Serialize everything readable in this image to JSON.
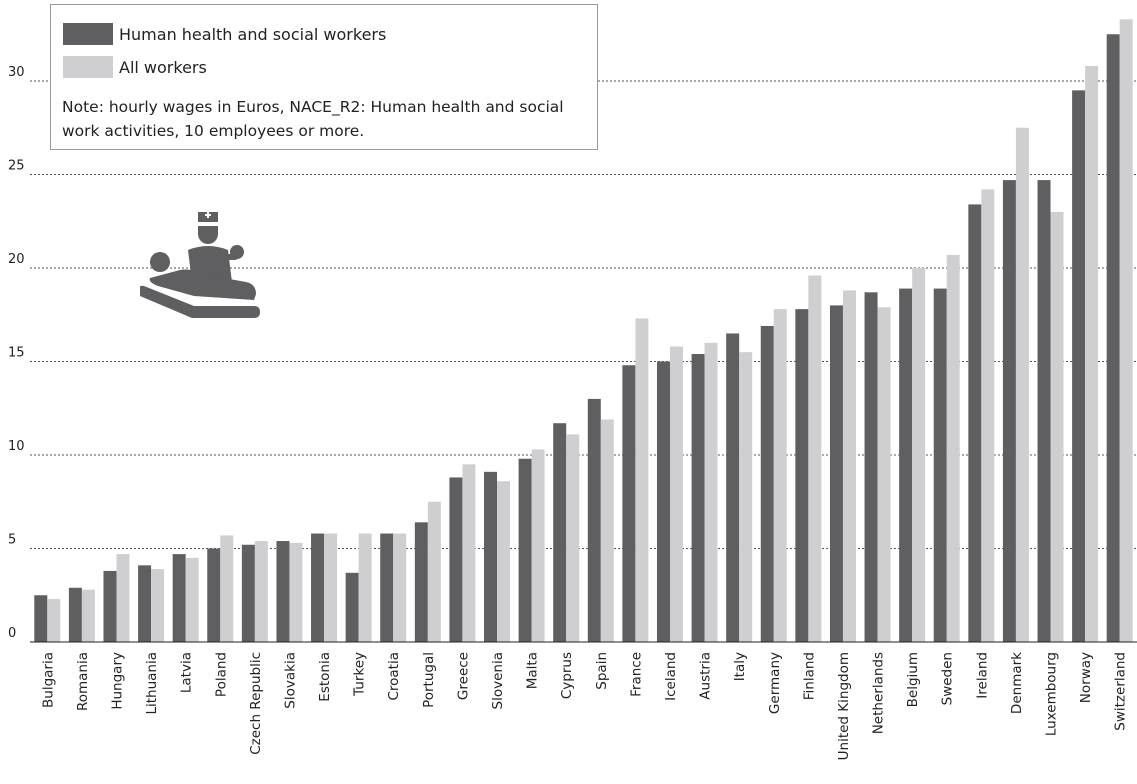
{
  "chart_data": {
    "type": "bar",
    "title": "",
    "xlabel": "",
    "ylabel": "",
    "ylim": [
      0,
      33
    ],
    "yticks": [
      0,
      5,
      10,
      15,
      20,
      25,
      30
    ],
    "grid": "horizontal dotted",
    "legend_position": "top-left",
    "categories": [
      "Bulgaria",
      "Romania",
      "Hungary",
      "Lithuania",
      "Latvia",
      "Poland",
      "Czech Republic",
      "Slovakia",
      "Estonia",
      "Turkey",
      "Croatia",
      "Portugal",
      "Greece",
      "Slovenia",
      "Malta",
      "Cyprus",
      "Spain",
      "France",
      "Iceland",
      "Austria",
      "Italy",
      "Germany",
      "Finland",
      "United Kingdom",
      "Netherlands",
      "Belgium",
      "Sweden",
      "Ireland",
      "Denmark",
      "Luxembourg",
      "Norway",
      "Switzerland"
    ],
    "series": [
      {
        "name": "Human health and social workers",
        "color": "#5f5f62",
        "values": [
          2.5,
          2.9,
          3.8,
          4.1,
          4.7,
          5.0,
          5.2,
          5.4,
          5.8,
          3.7,
          5.8,
          6.4,
          8.8,
          9.1,
          9.8,
          11.7,
          13.0,
          14.8,
          15.0,
          15.4,
          16.5,
          16.9,
          17.8,
          18.0,
          18.7,
          18.9,
          18.9,
          23.4,
          24.7,
          24.7,
          29.5,
          32.5
        ]
      },
      {
        "name": "All workers",
        "color": "#cfcfd1",
        "values": [
          2.3,
          2.8,
          4.7,
          3.9,
          4.5,
          5.7,
          5.4,
          5.3,
          5.8,
          5.8,
          5.8,
          7.5,
          9.5,
          8.6,
          10.3,
          11.1,
          11.9,
          17.3,
          15.8,
          16.0,
          15.5,
          17.8,
          19.6,
          18.8,
          17.9,
          20.0,
          20.7,
          24.2,
          27.5,
          23.0,
          30.8,
          33.3
        ]
      }
    ]
  },
  "legend": {
    "items": [
      {
        "label": "Human health and social workers",
        "color": "#5f5f62"
      },
      {
        "label": "All workers",
        "color": "#cfcfd1"
      }
    ],
    "note": "Note: hourly wages in Euros, NACE_R2: Human health and social work activities, 10 employees or more."
  },
  "icon": "nurse-caring-for-patient-icon"
}
